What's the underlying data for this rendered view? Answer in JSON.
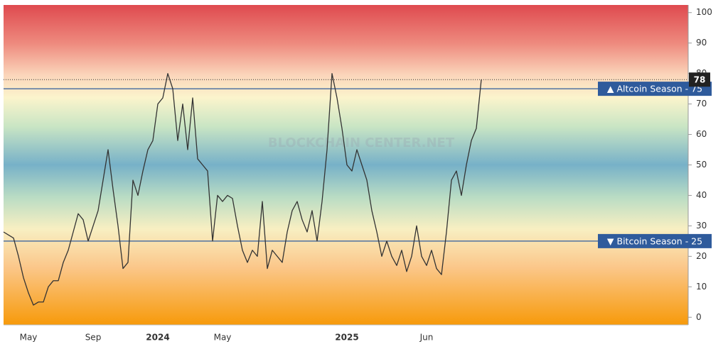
{
  "chart_data": {
    "type": "line",
    "watermark": "BLOCKCHAIN CENTER.NET",
    "categories": [
      null,
      null,
      null,
      null,
      null,
      "May",
      null,
      null,
      null,
      null,
      null,
      null,
      null,
      null,
      null,
      null,
      null,
      null,
      "Sep",
      null,
      null,
      null,
      null,
      null,
      null,
      null,
      null,
      null,
      null,
      null,
      null,
      "2024",
      null,
      null,
      null,
      null,
      null,
      null,
      null,
      null,
      null,
      null,
      null,
      null,
      "May",
      null,
      null,
      null,
      null,
      null,
      null,
      null,
      null,
      null,
      null,
      null,
      null,
      null,
      null,
      null,
      null,
      null,
      null,
      null,
      null,
      null,
      null,
      null,
      null,
      "2025",
      null,
      null,
      null,
      null,
      null,
      null,
      null,
      null,
      null,
      null,
      null,
      null,
      null,
      null,
      null,
      "Jun",
      null,
      null,
      null,
      null,
      null,
      null,
      null,
      null,
      null,
      null,
      null
    ],
    "series": [
      {
        "color": "#333333",
        "values": [
          28,
          27,
          26,
          20,
          13,
          8,
          4,
          5,
          5,
          10,
          12,
          12,
          18,
          22,
          28,
          34,
          32,
          25,
          30,
          35,
          45,
          55,
          42,
          30,
          16,
          18,
          45,
          40,
          48,
          55,
          58,
          70,
          72,
          80,
          75,
          58,
          70,
          55,
          72,
          52,
          50,
          48,
          25,
          40,
          38,
          40,
          39,
          30,
          22,
          18,
          22,
          20,
          38,
          16,
          22,
          20,
          18,
          28,
          35,
          38,
          32,
          28,
          35,
          25,
          38,
          55,
          80,
          72,
          62,
          50,
          48,
          55,
          50,
          45,
          35,
          28,
          20,
          25,
          20,
          17,
          22,
          15,
          20,
          30,
          20,
          17,
          22,
          16,
          14,
          28,
          45,
          48,
          40,
          50,
          58,
          62,
          78
        ]
      }
    ],
    "reference_lines": [
      {
        "value": 75,
        "label": "▲ Altcoin Season - 75",
        "color": "#2f5b9c"
      },
      {
        "value": 25,
        "label": "▼ Bitcoin Season - 25",
        "color": "#2f5b9c"
      }
    ],
    "ylim": [
      -2.5,
      102.5
    ],
    "yticks": [
      0,
      10,
      20,
      30,
      40,
      50,
      60,
      70,
      80,
      90,
      100
    ]
  }
}
